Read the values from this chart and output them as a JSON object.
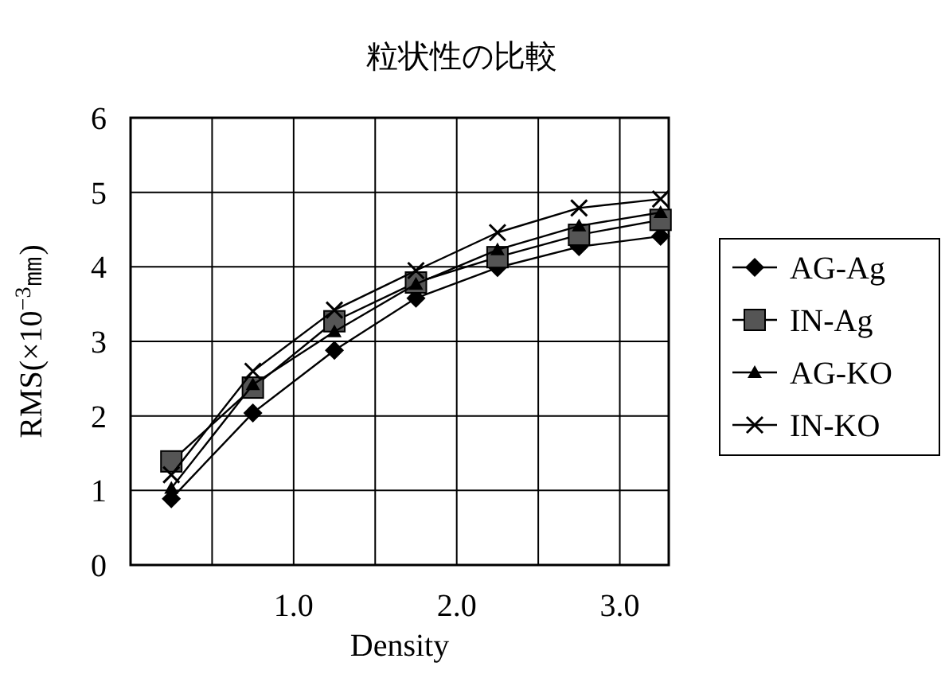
{
  "chart_data": {
    "type": "line",
    "title": "粒状性の比較",
    "xlabel": "Density",
    "ylabel": "RMS(×10$^{−3}$㎜)",
    "x": [
      0.25,
      0.75,
      1.25,
      1.75,
      2.25,
      2.75,
      3.25
    ],
    "xlim": [
      0,
      3.3
    ],
    "xticks": [
      {
        "value": 0.5,
        "label": null
      },
      {
        "value": 1.0,
        "label": "1.0"
      },
      {
        "value": 1.5,
        "label": null
      },
      {
        "value": 2.0,
        "label": "2.0"
      },
      {
        "value": 2.5,
        "label": null
      },
      {
        "value": 3.0,
        "label": "3.0"
      }
    ],
    "ylim": [
      0,
      6
    ],
    "yticks": [
      0,
      1,
      2,
      3,
      4,
      5,
      6
    ],
    "grid": true,
    "legend": "right",
    "series": [
      {
        "name": "AG-Ag",
        "color": "#000000",
        "marker": "diamond",
        "values": [
          0.89,
          2.04,
          2.88,
          3.58,
          3.99,
          4.27,
          4.41
        ]
      },
      {
        "name": "IN-Ag",
        "color": "#555555",
        "marker": "square",
        "values": [
          1.39,
          2.38,
          3.27,
          3.79,
          4.13,
          4.43,
          4.63
        ]
      },
      {
        "name": "AG-KO",
        "color": "#000000",
        "marker": "triangle",
        "values": [
          1.03,
          2.42,
          3.13,
          3.77,
          4.23,
          4.55,
          4.73
        ]
      },
      {
        "name": "IN-KO",
        "color": "#000000",
        "marker": "cross",
        "values": [
          1.21,
          2.6,
          3.42,
          3.95,
          4.46,
          4.79,
          4.91
        ]
      }
    ]
  }
}
